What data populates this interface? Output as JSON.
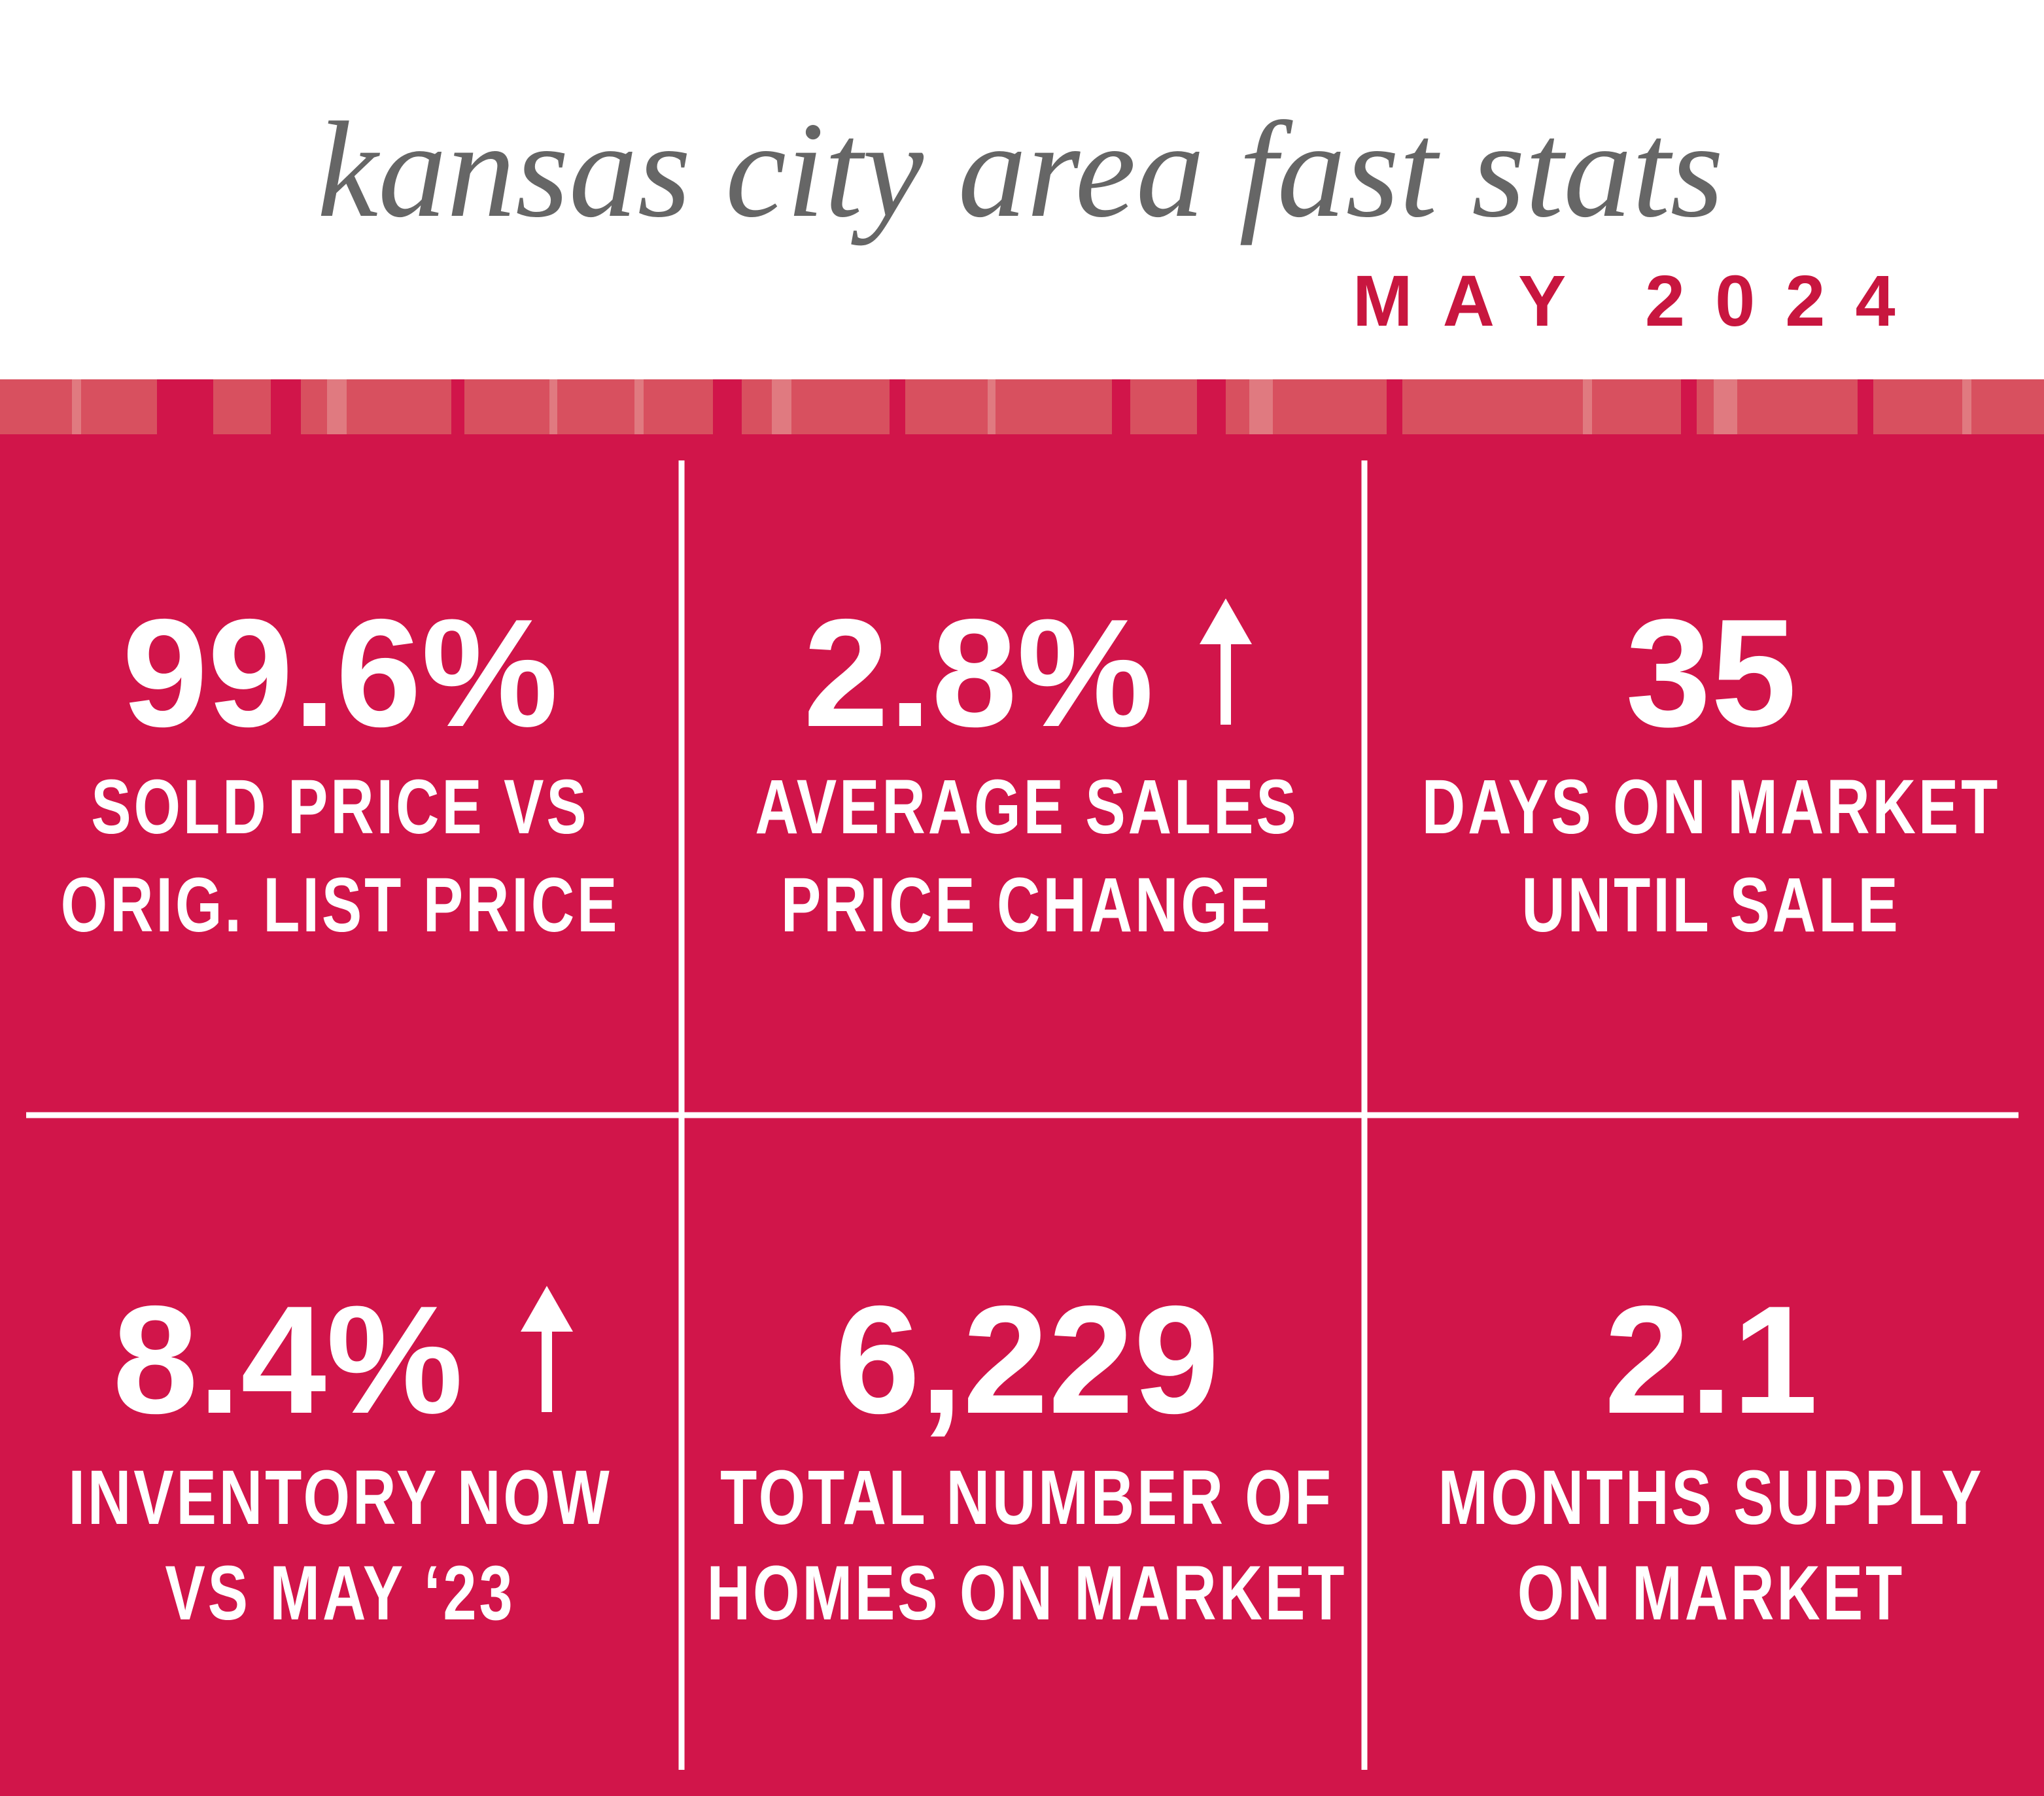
{
  "header": {
    "title": "kansas city area fast stats",
    "subtitle": "MAY 2024"
  },
  "stats": [
    {
      "value": "99.6%",
      "label": [
        "SOLD PRICE VS",
        "ORIG. LIST PRICE"
      ]
    },
    {
      "value": "2.8%",
      "label": [
        "AVERAGE SALES",
        "PRICE CHANGE"
      ]
    },
    {
      "value": "35",
      "label": [
        "DAYS ON MARKET",
        "UNTIL SALE"
      ]
    },
    {
      "value": "8.4%",
      "label": [
        "INVENTORY NOW",
        "VS MAY ‘23"
      ]
    },
    {
      "value": "6,229",
      "label": [
        "TOTAL NUMBER OF",
        "HOMES ON MARKET"
      ]
    },
    {
      "value": "2.1",
      "label": [
        "MONTHS SUPPLY",
        "ON MARKET"
      ]
    }
  ]
}
